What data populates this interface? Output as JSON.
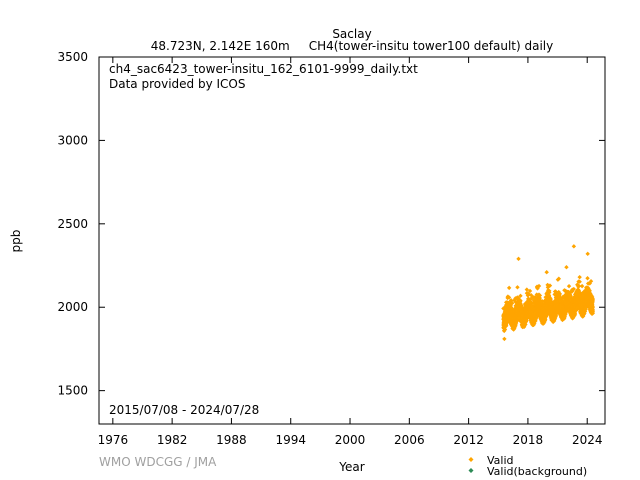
{
  "chart_data": {
    "type": "scatter",
    "title": "Saclay",
    "subtitle": "48.723N, 2.142E 160m     CH4(tower-insitu tower100 default) daily",
    "file_label": "ch4_sac6423_tower-insitu_162_6101-9999_daily.txt",
    "provider": "Data provided by ICOS",
    "date_range": "2015/07/08 - 2024/07/28",
    "xlabel": "Year",
    "ylabel": "ppb",
    "xlim": [
      1974.6,
      2025.8
    ],
    "ylim": [
      1300,
      3500
    ],
    "x_ticks": [
      "1976",
      "1982",
      "1988",
      "1994",
      "2000",
      "2006",
      "2012",
      "2018",
      "2024"
    ],
    "y_ticks": [
      "1500",
      "2000",
      "2500",
      "3000",
      "3500"
    ],
    "grid": false,
    "legend_position": "bottom-right",
    "credit": "WMO WDCGG / JMA",
    "series": [
      {
        "name": "Valid",
        "color": "#ffa500",
        "marker": "diamond",
        "x_start": 2015.52,
        "x_end": 2024.57,
        "baseline_start": 1940,
        "annual_growth": 11,
        "seasonal_amplitude": 30,
        "spread": 110,
        "points_per_year": 365,
        "notable_points": [
          {
            "x": 2015.62,
            "y": 1810
          },
          {
            "x": 2017.05,
            "y": 2290
          },
          {
            "x": 2022.65,
            "y": 2365
          },
          {
            "x": 2024.05,
            "y": 2320
          },
          {
            "x": 2021.9,
            "y": 2240
          },
          {
            "x": 2019.9,
            "y": 2210
          }
        ]
      },
      {
        "name": "Valid(background)",
        "color": "#2e8b57",
        "marker": "diamond",
        "points": []
      }
    ]
  }
}
